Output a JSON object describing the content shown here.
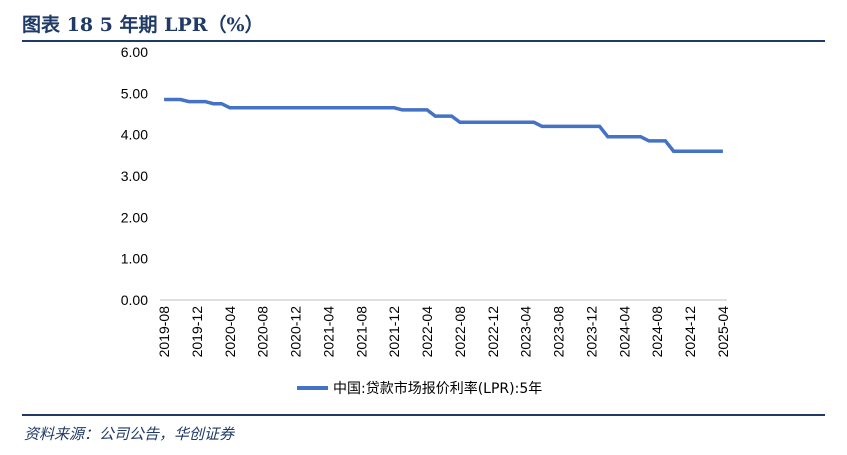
{
  "header": {
    "title": "图表 18   5 年期 LPR（%）"
  },
  "footer": {
    "source": "资料来源：公司公告，华创证券"
  },
  "chart_data": {
    "type": "line",
    "title": "",
    "xlabel": "",
    "ylabel": "",
    "ylim": [
      0,
      6
    ],
    "yticks": [
      "0.00",
      "1.00",
      "2.00",
      "3.00",
      "4.00",
      "5.00",
      "6.00"
    ],
    "xticks": [
      "2019-08",
      "2019-12",
      "2020-04",
      "2020-08",
      "2020-12",
      "2021-04",
      "2021-08",
      "2021-12",
      "2022-04",
      "2022-08",
      "2022-12",
      "2023-04",
      "2023-08",
      "2023-12",
      "2024-04",
      "2024-08",
      "2024-12",
      "2025-04"
    ],
    "legend_position": "bottom",
    "grid": false,
    "series": [
      {
        "name": "中国:贷款市场报价利率(LPR):5年",
        "color": "#4472c4",
        "x": [
          "2019-08",
          "2019-09",
          "2019-10",
          "2019-11",
          "2019-12",
          "2020-01",
          "2020-02",
          "2020-03",
          "2020-04",
          "2020-05",
          "2020-06",
          "2020-07",
          "2020-08",
          "2020-09",
          "2020-10",
          "2020-11",
          "2020-12",
          "2021-01",
          "2021-02",
          "2021-03",
          "2021-04",
          "2021-05",
          "2021-06",
          "2021-07",
          "2021-08",
          "2021-09",
          "2021-10",
          "2021-11",
          "2021-12",
          "2022-01",
          "2022-02",
          "2022-03",
          "2022-04",
          "2022-05",
          "2022-06",
          "2022-07",
          "2022-08",
          "2022-09",
          "2022-10",
          "2022-11",
          "2022-12",
          "2023-01",
          "2023-02",
          "2023-03",
          "2023-04",
          "2023-05",
          "2023-06",
          "2023-07",
          "2023-08",
          "2023-09",
          "2023-10",
          "2023-11",
          "2023-12",
          "2024-01",
          "2024-02",
          "2024-03",
          "2024-04",
          "2024-05",
          "2024-06",
          "2024-07",
          "2024-08",
          "2024-09",
          "2024-10",
          "2024-11",
          "2024-12",
          "2025-01",
          "2025-02",
          "2025-03",
          "2025-04"
        ],
        "values": [
          4.85,
          4.85,
          4.85,
          4.8,
          4.8,
          4.8,
          4.75,
          4.75,
          4.65,
          4.65,
          4.65,
          4.65,
          4.65,
          4.65,
          4.65,
          4.65,
          4.65,
          4.65,
          4.65,
          4.65,
          4.65,
          4.65,
          4.65,
          4.65,
          4.65,
          4.65,
          4.65,
          4.65,
          4.65,
          4.6,
          4.6,
          4.6,
          4.6,
          4.45,
          4.45,
          4.45,
          4.3,
          4.3,
          4.3,
          4.3,
          4.3,
          4.3,
          4.3,
          4.3,
          4.3,
          4.3,
          4.2,
          4.2,
          4.2,
          4.2,
          4.2,
          4.2,
          4.2,
          4.2,
          3.95,
          3.95,
          3.95,
          3.95,
          3.95,
          3.85,
          3.85,
          3.85,
          3.6,
          3.6,
          3.6,
          3.6,
          3.6,
          3.6,
          3.6
        ]
      }
    ]
  }
}
